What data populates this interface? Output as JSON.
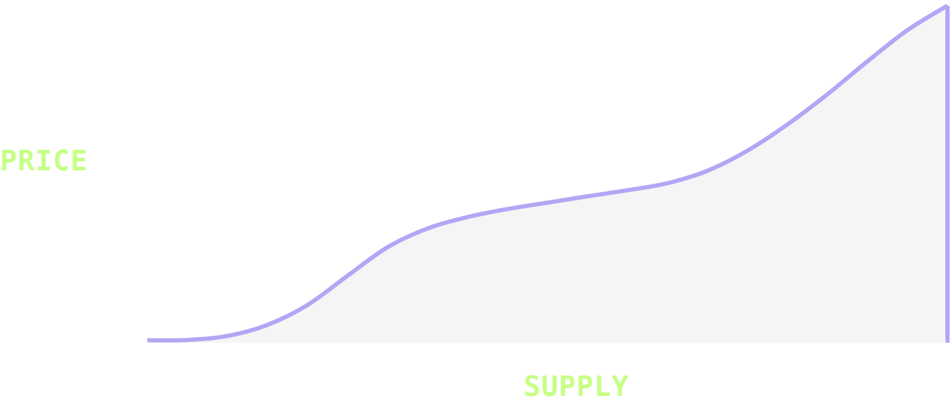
{
  "chart_data": {
    "type": "area",
    "title": "",
    "xlabel": "SUPPLY",
    "ylabel": "PRICE",
    "grid": false,
    "legend": "none",
    "x": [
      0,
      5,
      10,
      15,
      20,
      25,
      30,
      35,
      40,
      45,
      50,
      55,
      60,
      65,
      70,
      75,
      80,
      85,
      90,
      95,
      100
    ],
    "series": [
      {
        "name": "",
        "values": [
          0.3,
          0.4,
          1.6,
          4.9,
          10.8,
          19.5,
          28.0,
          33.6,
          37.0,
          39.4,
          41.3,
          43.2,
          45.0,
          47.1,
          50.8,
          56.8,
          64.6,
          73.6,
          83.4,
          92.7,
          100
        ]
      }
    ],
    "xlim": [
      0,
      100
    ],
    "ylim": [
      0,
      100
    ],
    "colors": {
      "line": "#b3a6f5",
      "fill": "#f5f5f6",
      "label": "#c6ff86"
    }
  }
}
